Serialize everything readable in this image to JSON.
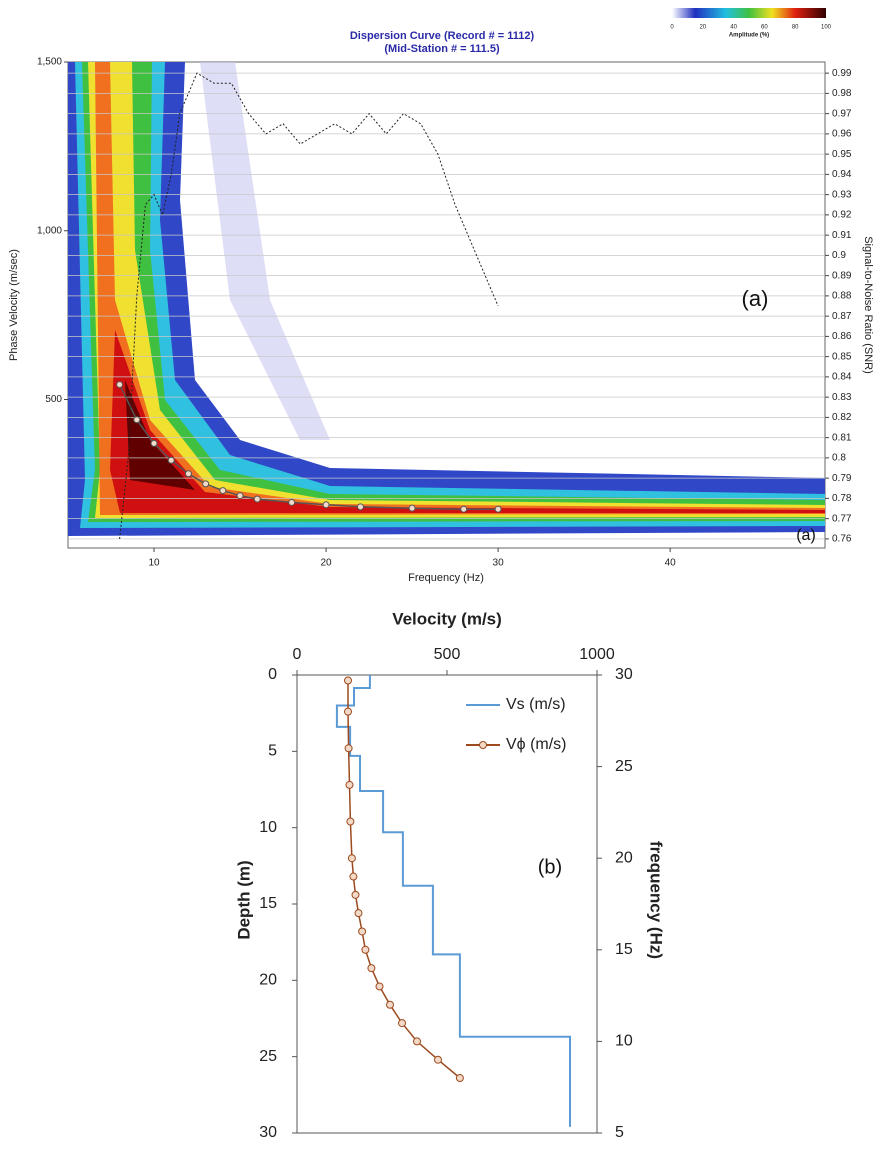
{
  "chart_data": [
    {
      "type": "dispersion",
      "title": "Dispersion Curve (Record # = 1112)",
      "subtitle": "(Mid-Station # = 111.5)",
      "xlabel": "Frequency (Hz)",
      "ylabel": "Phase Velocity (m/sec)",
      "y2label": "Signal-to-Noise Ratio (SNR)",
      "xlim": [
        5,
        49
      ],
      "xticks": [
        10,
        20,
        30,
        40
      ],
      "ylim": [
        60,
        1500
      ],
      "yticks": [
        500,
        {
          "value": 1000,
          "label": "1,000"
        },
        {
          "value": 1500,
          "label": "1,500"
        }
      ],
      "y2lim": [
        0.7555,
        0.9955
      ],
      "y2ticks": [
        0.76,
        0.77,
        0.78,
        0.79,
        0.8,
        0.81,
        0.82,
        0.83,
        0.84,
        0.85,
        0.86,
        0.87,
        0.88,
        0.89,
        0.9,
        0.91,
        0.92,
        0.93,
        0.94,
        0.95,
        0.96,
        0.97,
        0.98,
        0.99
      ],
      "grid": true,
      "colorbar": {
        "label": "Amplitude (%)",
        "ticks": [
          0,
          20,
          40,
          60,
          80,
          100
        ]
      },
      "annotations": [
        "(a)",
        "(a)"
      ],
      "series": [
        {
          "color": "#555555",
          "marker": true,
          "x": [
            8,
            9,
            10,
            11,
            12,
            13,
            14,
            15,
            16,
            18,
            20,
            22,
            25,
            28,
            30
          ],
          "values": [
            544,
            440,
            370,
            320,
            280,
            250,
            230,
            215,
            205,
            195,
            188,
            182,
            178,
            175,
            175
          ]
        },
        {
          "color": "#222222",
          "axis": "y2",
          "dashed": true,
          "x": [
            8.0,
            8.5,
            9.0,
            9.5,
            10.0,
            10.5,
            11.0,
            11.5,
            12.0,
            12.5,
            13.5,
            14.5,
            15.5,
            16.5,
            17.5,
            18.5,
            19.5,
            20.5,
            21.5,
            22.5,
            23.5,
            24.5,
            25.5,
            26.5,
            27.5,
            28.5,
            29.5,
            30.0
          ],
          "values": [
            0.76,
            0.8,
            0.88,
            0.925,
            0.93,
            0.92,
            0.94,
            0.97,
            0.98,
            0.99,
            0.985,
            0.985,
            0.97,
            0.96,
            0.965,
            0.955,
            0.96,
            0.965,
            0.96,
            0.97,
            0.96,
            0.97,
            0.965,
            0.95,
            0.925,
            0.905,
            0.885,
            0.875
          ]
        }
      ]
    },
    {
      "type": "profile",
      "xlabel": "Velocity (m/s)",
      "ylabel": "Depth (m)",
      "y2label": "frequency (Hz)",
      "xlim": [
        0,
        1000
      ],
      "xticks": [
        0,
        500,
        1000
      ],
      "ylim": [
        0,
        30
      ],
      "y_reversed": true,
      "yticks": [
        0,
        5,
        10,
        15,
        20,
        25,
        30
      ],
      "y2lim": [
        5,
        30
      ],
      "y2ticks": [
        5,
        10,
        15,
        20,
        25,
        30
      ],
      "annotations": [
        "(b)"
      ],
      "series": [
        {
          "name": "Vs (m/s)",
          "color": "#5b9bd5",
          "x": [
            243,
            243,
            190,
            190,
            133,
            133,
            177,
            177,
            210,
            210,
            287,
            287,
            353,
            353,
            453,
            453,
            543,
            543,
            910,
            910
          ],
          "values": [
            0,
            0.85,
            0.85,
            2.0,
            2.0,
            3.4,
            3.4,
            5.3,
            5.3,
            7.6,
            7.6,
            10.3,
            10.3,
            13.8,
            13.8,
            18.3,
            18.3,
            23.7,
            23.7,
            29.6
          ]
        },
        {
          "name": "Vϕ (m/s)",
          "color": "#9c4a1e",
          "axis": "y2",
          "marker": true,
          "x": [
            170,
            170,
            172,
            175,
            178,
            183,
            188,
            195,
            205,
            217,
            228,
            248,
            275,
            310,
            350,
            400,
            470,
            543
          ],
          "values": [
            29.7,
            28,
            26,
            24,
            22,
            20,
            19,
            18,
            17,
            16,
            15,
            14,
            13,
            12,
            11,
            10,
            9,
            8
          ]
        }
      ]
    }
  ]
}
